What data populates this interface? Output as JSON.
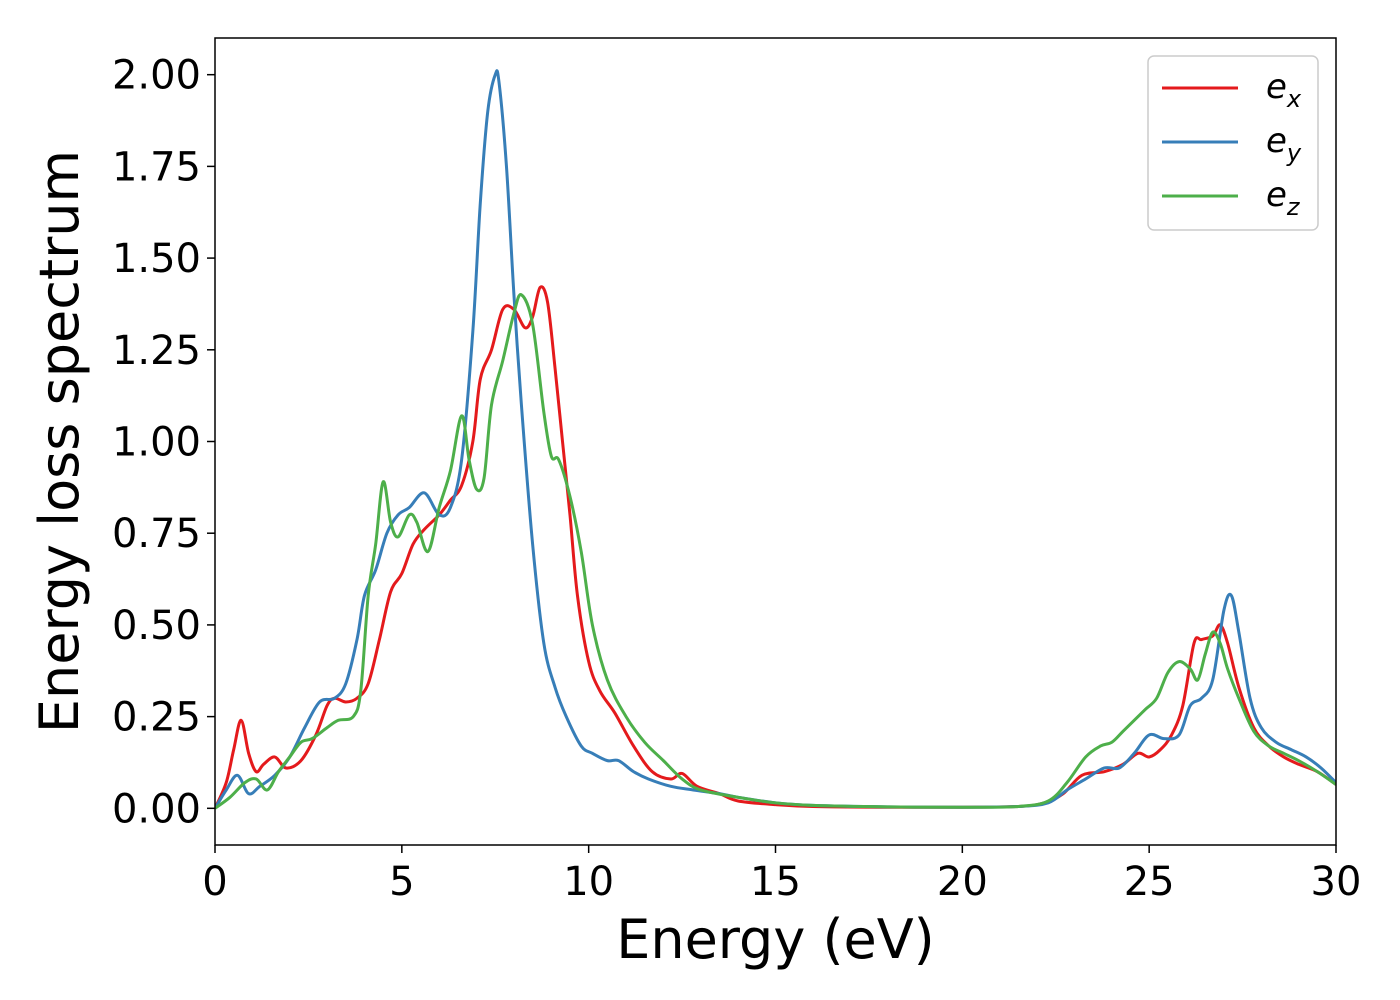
{
  "chart_data": {
    "type": "line",
    "title": "",
    "xlabel": "Energy (eV)",
    "ylabel": "Energy loss spectrum",
    "xlim": [
      0,
      30
    ],
    "ylim": [
      -0.1,
      2.1
    ],
    "xticks": [
      0,
      5,
      10,
      15,
      20,
      25,
      30
    ],
    "xtick_labels": [
      "0",
      "5",
      "10",
      "15",
      "20",
      "25",
      "30"
    ],
    "yticks": [
      0.0,
      0.25,
      0.5,
      0.75,
      1.0,
      1.25,
      1.5,
      1.75,
      2.0
    ],
    "ytick_labels": [
      "0.00",
      "0.25",
      "0.50",
      "0.75",
      "1.00",
      "1.25",
      "1.50",
      "1.75",
      "2.00"
    ],
    "grid": false,
    "legend_position": "top-right",
    "series": [
      {
        "name": "e_x",
        "legend_base": "e",
        "legend_sub": "x",
        "color": "#e41a1c",
        "x": [
          0,
          0.3,
          0.5,
          0.7,
          0.9,
          1.1,
          1.3,
          1.6,
          1.9,
          2.3,
          2.7,
          3.0,
          3.2,
          3.5,
          3.8,
          4.1,
          4.4,
          4.7,
          5.0,
          5.3,
          5.6,
          6.0,
          6.3,
          6.6,
          6.9,
          7.1,
          7.4,
          7.7,
          8.0,
          8.3,
          8.5,
          8.7,
          8.9,
          9.1,
          9.3,
          9.5,
          9.7,
          10.0,
          10.3,
          10.7,
          11.2,
          11.7,
          12.2,
          12.5,
          12.9,
          13.5,
          14.0,
          15.0,
          16.0,
          18.0,
          20.0,
          21.5,
          22.2,
          22.7,
          23.2,
          23.8,
          24.3,
          24.7,
          25.0,
          25.3,
          25.6,
          25.9,
          26.2,
          26.4,
          26.7,
          26.9,
          27.1,
          27.4,
          27.8,
          28.2,
          28.6,
          29.0,
          29.5,
          30.0
        ],
        "y": [
          0.0,
          0.07,
          0.16,
          0.24,
          0.15,
          0.1,
          0.12,
          0.14,
          0.11,
          0.13,
          0.2,
          0.28,
          0.3,
          0.29,
          0.3,
          0.34,
          0.46,
          0.59,
          0.64,
          0.72,
          0.76,
          0.8,
          0.84,
          0.88,
          1.0,
          1.17,
          1.25,
          1.36,
          1.36,
          1.31,
          1.34,
          1.42,
          1.38,
          1.2,
          1.0,
          0.8,
          0.58,
          0.4,
          0.32,
          0.26,
          0.17,
          0.1,
          0.08,
          0.095,
          0.06,
          0.04,
          0.02,
          0.01,
          0.005,
          0.003,
          0.003,
          0.005,
          0.015,
          0.04,
          0.09,
          0.1,
          0.12,
          0.15,
          0.14,
          0.16,
          0.2,
          0.28,
          0.45,
          0.46,
          0.47,
          0.5,
          0.45,
          0.33,
          0.22,
          0.17,
          0.14,
          0.12,
          0.1,
          0.065
        ]
      },
      {
        "name": "e_y",
        "legend_base": "e",
        "legend_sub": "y",
        "color": "#377eb8",
        "x": [
          0,
          0.3,
          0.6,
          0.9,
          1.2,
          1.6,
          2.0,
          2.4,
          2.8,
          3.2,
          3.5,
          3.8,
          4.0,
          4.3,
          4.6,
          4.9,
          5.2,
          5.6,
          6.0,
          6.3,
          6.6,
          6.9,
          7.1,
          7.3,
          7.5,
          7.6,
          7.8,
          8.0,
          8.2,
          8.5,
          8.8,
          9.1,
          9.4,
          9.8,
          10.1,
          10.5,
          10.8,
          11.2,
          11.6,
          12.2,
          12.8,
          13.5,
          14.0,
          15.0,
          16.0,
          18.0,
          20.0,
          21.5,
          22.3,
          22.8,
          23.3,
          23.8,
          24.2,
          24.6,
          25.0,
          25.4,
          25.8,
          26.1,
          26.4,
          26.7,
          27.0,
          27.2,
          27.4,
          27.7,
          28.0,
          28.4,
          28.8,
          29.2,
          29.6,
          30.0
        ],
        "y": [
          0.0,
          0.05,
          0.09,
          0.04,
          0.06,
          0.09,
          0.14,
          0.22,
          0.29,
          0.3,
          0.34,
          0.46,
          0.58,
          0.65,
          0.75,
          0.8,
          0.82,
          0.86,
          0.8,
          0.82,
          0.95,
          1.3,
          1.65,
          1.9,
          2.0,
          1.98,
          1.75,
          1.4,
          1.1,
          0.72,
          0.45,
          0.33,
          0.25,
          0.17,
          0.15,
          0.13,
          0.13,
          0.1,
          0.08,
          0.06,
          0.05,
          0.04,
          0.03,
          0.015,
          0.008,
          0.004,
          0.003,
          0.005,
          0.015,
          0.05,
          0.08,
          0.11,
          0.11,
          0.15,
          0.2,
          0.19,
          0.2,
          0.28,
          0.3,
          0.35,
          0.54,
          0.58,
          0.48,
          0.3,
          0.22,
          0.18,
          0.16,
          0.14,
          0.11,
          0.07
        ]
      },
      {
        "name": "e_z",
        "legend_base": "e",
        "legend_sub": "z",
        "color": "#4daf4a",
        "x": [
          0,
          0.4,
          0.8,
          1.1,
          1.4,
          1.7,
          2.0,
          2.3,
          2.6,
          3.0,
          3.3,
          3.7,
          3.9,
          4.1,
          4.3,
          4.5,
          4.7,
          4.9,
          5.2,
          5.4,
          5.7,
          6.0,
          6.3,
          6.6,
          6.8,
          7.0,
          7.2,
          7.4,
          7.7,
          8.0,
          8.2,
          8.5,
          8.8,
          9.0,
          9.2,
          9.5,
          9.8,
          10.1,
          10.5,
          11.0,
          11.5,
          12.0,
          12.5,
          13.0,
          14.0,
          15.0,
          16.0,
          18.0,
          20.0,
          21.5,
          22.3,
          22.8,
          23.3,
          23.7,
          24.0,
          24.3,
          24.6,
          24.9,
          25.2,
          25.5,
          25.8,
          26.1,
          26.3,
          26.5,
          26.7,
          26.9,
          27.1,
          27.4,
          27.8,
          28.2,
          28.6,
          29.0,
          29.5,
          30.0
        ],
        "y": [
          0.0,
          0.03,
          0.07,
          0.08,
          0.05,
          0.1,
          0.14,
          0.18,
          0.19,
          0.22,
          0.24,
          0.25,
          0.32,
          0.58,
          0.72,
          0.89,
          0.78,
          0.74,
          0.8,
          0.78,
          0.7,
          0.82,
          0.92,
          1.07,
          0.95,
          0.87,
          0.9,
          1.1,
          1.22,
          1.35,
          1.4,
          1.32,
          1.08,
          0.96,
          0.95,
          0.85,
          0.7,
          0.5,
          0.35,
          0.25,
          0.18,
          0.13,
          0.08,
          0.05,
          0.03,
          0.015,
          0.008,
          0.004,
          0.003,
          0.005,
          0.02,
          0.07,
          0.14,
          0.17,
          0.18,
          0.21,
          0.24,
          0.27,
          0.3,
          0.37,
          0.4,
          0.38,
          0.35,
          0.42,
          0.48,
          0.45,
          0.38,
          0.3,
          0.21,
          0.17,
          0.15,
          0.13,
          0.1,
          0.065
        ]
      }
    ]
  }
}
